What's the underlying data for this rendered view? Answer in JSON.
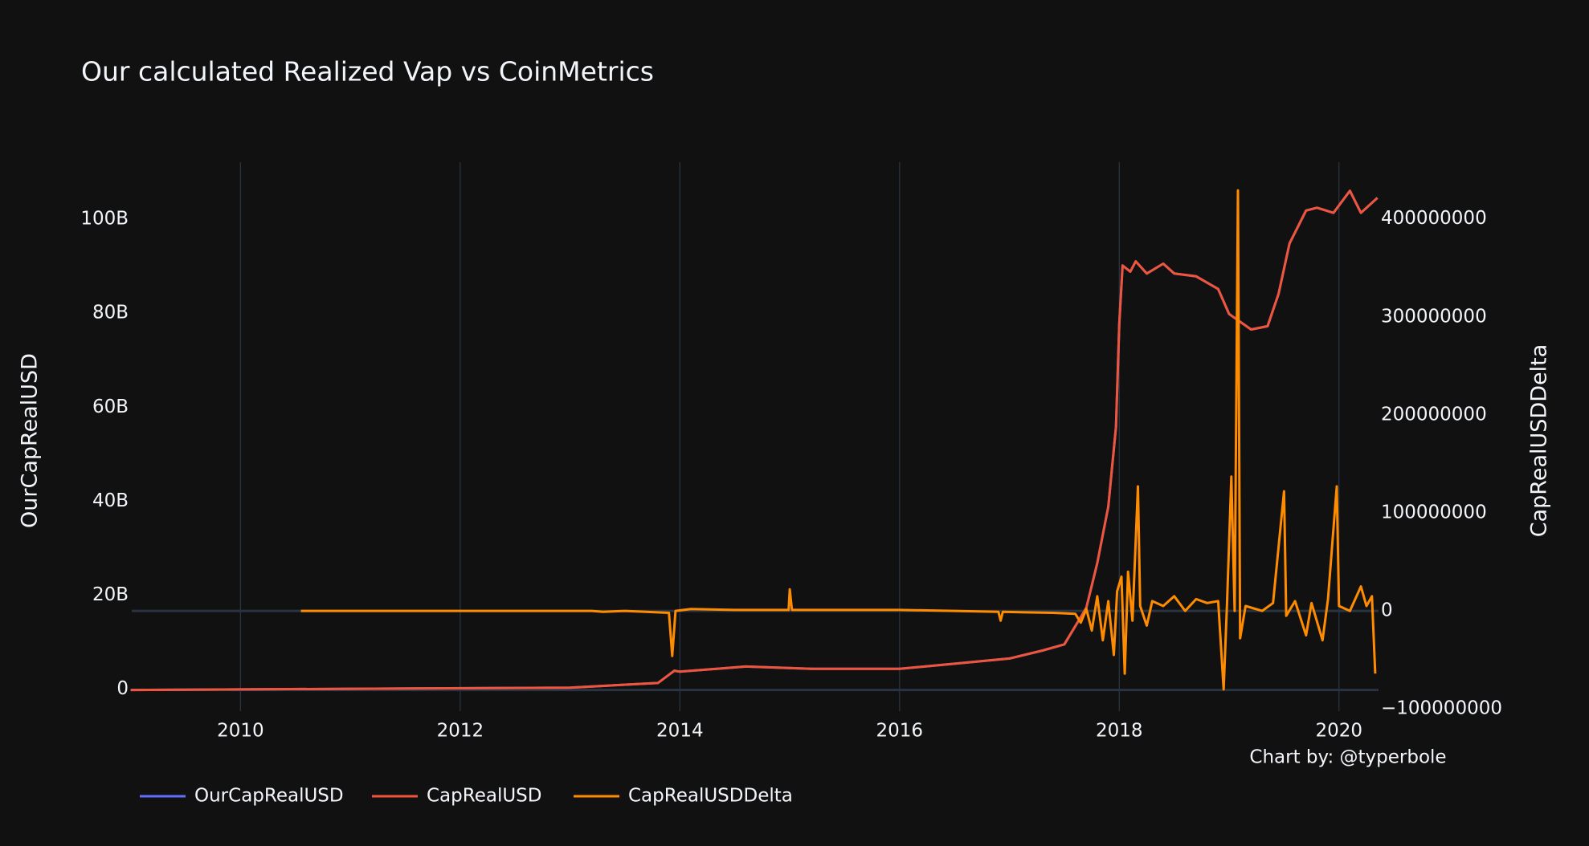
{
  "chart_data": {
    "type": "line",
    "title": "Our calculated Realized Vap vs CoinMetrics",
    "y_label": "OurCapRealUSD",
    "y2_label": "CapRealUSDDelta",
    "annotation": "Chart by: @typerbole",
    "grid": "x",
    "legend": "bottom-left",
    "xlim": [
      2009.01,
      2020.36
    ],
    "xticks": [
      2010,
      2012,
      2014,
      2016,
      2018,
      2020
    ],
    "ylim": [
      -4500000000,
      112300000000
    ],
    "yticks": [
      0,
      {
        "value": 20000000000,
        "label": "20B"
      },
      {
        "value": 40000000000,
        "label": "40B"
      },
      {
        "value": 60000000000,
        "label": "60B"
      },
      {
        "value": 80000000000,
        "label": "80B"
      },
      {
        "value": 100000000000,
        "label": "100B"
      }
    ],
    "y2lim": [
      -102300000,
      457900000
    ],
    "y2ticks": [
      {
        "value": -100000000,
        "label": "−100000000"
      },
      0,
      100000000,
      200000000,
      300000000,
      400000000
    ],
    "series": [
      {
        "name": "OurCapRealUSD",
        "color": "#636efa",
        "x": [
          2009.0,
          2013.0,
          2013.8,
          2013.95,
          2014.0,
          2014.6,
          2015.2,
          2016.0,
          2016.5,
          2017.0,
          2017.3,
          2017.5,
          2017.7,
          2017.8,
          2017.9,
          2017.97,
          2018.0,
          2018.03,
          2018.1,
          2018.15,
          2018.25,
          2018.4,
          2018.5,
          2018.7,
          2018.9,
          2019.0,
          2019.2,
          2019.35,
          2019.45,
          2019.55,
          2019.7,
          2019.8,
          2019.95,
          2020.1,
          2020.2,
          2020.35
        ],
        "values": [
          0,
          500000000,
          1500000000,
          4100000000,
          3900000000,
          5000000000,
          4500000000,
          4500000000,
          5600000000,
          6700000000,
          8400000000,
          9700000000,
          17500000000,
          27000000000,
          39000000000,
          56000000000,
          78000000000,
          90300000000,
          89000000000,
          91200000000,
          88600000000,
          90700000000,
          88600000000,
          88000000000,
          85300000000,
          80000000000,
          76700000000,
          77400000000,
          84300000000,
          95000000000,
          102000000000,
          102600000000,
          101500000000,
          106200000000,
          101500000000,
          104700000000
        ]
      },
      {
        "name": "CapRealUSD",
        "color": "#ef553b",
        "x": [
          2009.0,
          2013.0,
          2013.8,
          2013.95,
          2014.0,
          2014.6,
          2015.2,
          2016.0,
          2016.5,
          2017.0,
          2017.3,
          2017.5,
          2017.7,
          2017.8,
          2017.9,
          2017.97,
          2018.0,
          2018.03,
          2018.1,
          2018.15,
          2018.25,
          2018.4,
          2018.5,
          2018.7,
          2018.9,
          2019.0,
          2019.2,
          2019.35,
          2019.45,
          2019.55,
          2019.7,
          2019.8,
          2019.95,
          2020.1,
          2020.2,
          2020.35
        ],
        "values": [
          0,
          500000000,
          1500000000,
          4100000000,
          3900000000,
          5000000000,
          4500000000,
          4500000000,
          5600000000,
          6700000000,
          8400000000,
          9700000000,
          17500000000,
          27000000000,
          39000000000,
          56000000000,
          78000000000,
          90300000000,
          89000000000,
          91200000000,
          88600000000,
          90700000000,
          88600000000,
          88000000000,
          85300000000,
          80000000000,
          76700000000,
          77400000000,
          84300000000,
          95000000000,
          102000000000,
          102600000000,
          101500000000,
          106200000000,
          101500000000,
          104700000000
        ]
      },
      {
        "name": "CapRealUSDDelta",
        "color": "#ff8c00",
        "axis": "y2",
        "x": [
          2010.55,
          2013.2,
          2013.3,
          2013.5,
          2013.9,
          2013.93,
          2013.96,
          2014.1,
          2014.5,
          2014.99,
          2015.0,
          2015.02,
          2016.0,
          2016.5,
          2016.9,
          2016.92,
          2016.94,
          2017.4,
          2017.6,
          2017.65,
          2017.7,
          2017.75,
          2017.8,
          2017.85,
          2017.9,
          2017.95,
          2017.98,
          2018.02,
          2018.05,
          2018.08,
          2018.12,
          2018.17,
          2018.19,
          2018.25,
          2018.3,
          2018.4,
          2018.5,
          2018.6,
          2018.7,
          2018.8,
          2018.9,
          2018.95,
          2018.98,
          2019.02,
          2019.05,
          2019.08,
          2019.1,
          2019.15,
          2019.3,
          2019.4,
          2019.5,
          2019.52,
          2019.6,
          2019.7,
          2019.75,
          2019.85,
          2019.9,
          2019.98,
          2020.0,
          2020.1,
          2020.2,
          2020.25,
          2020.3,
          2020.33
        ],
        "values": [
          0,
          0,
          -1000000,
          0,
          -2000000,
          -46000000,
          0,
          2000000,
          1000000,
          1000000,
          22000000,
          1000000,
          1000000,
          0,
          -1000000,
          -10000000,
          -1000000,
          -2000000,
          -3000000,
          -12000000,
          2000000,
          -20000000,
          15000000,
          -30000000,
          10000000,
          -45000000,
          20000000,
          35000000,
          -64000000,
          40000000,
          -10000000,
          127000000,
          5000000,
          -15000000,
          10000000,
          5000000,
          15000000,
          0,
          12000000,
          8000000,
          10000000,
          -80000000,
          5000000,
          137000000,
          0,
          429000000,
          -28000000,
          5000000,
          0,
          8000000,
          122000000,
          -5000000,
          10000000,
          -25000000,
          8000000,
          -30000000,
          12000000,
          127000000,
          5000000,
          0,
          25000000,
          5000000,
          15000000,
          -64000000
        ]
      }
    ]
  }
}
